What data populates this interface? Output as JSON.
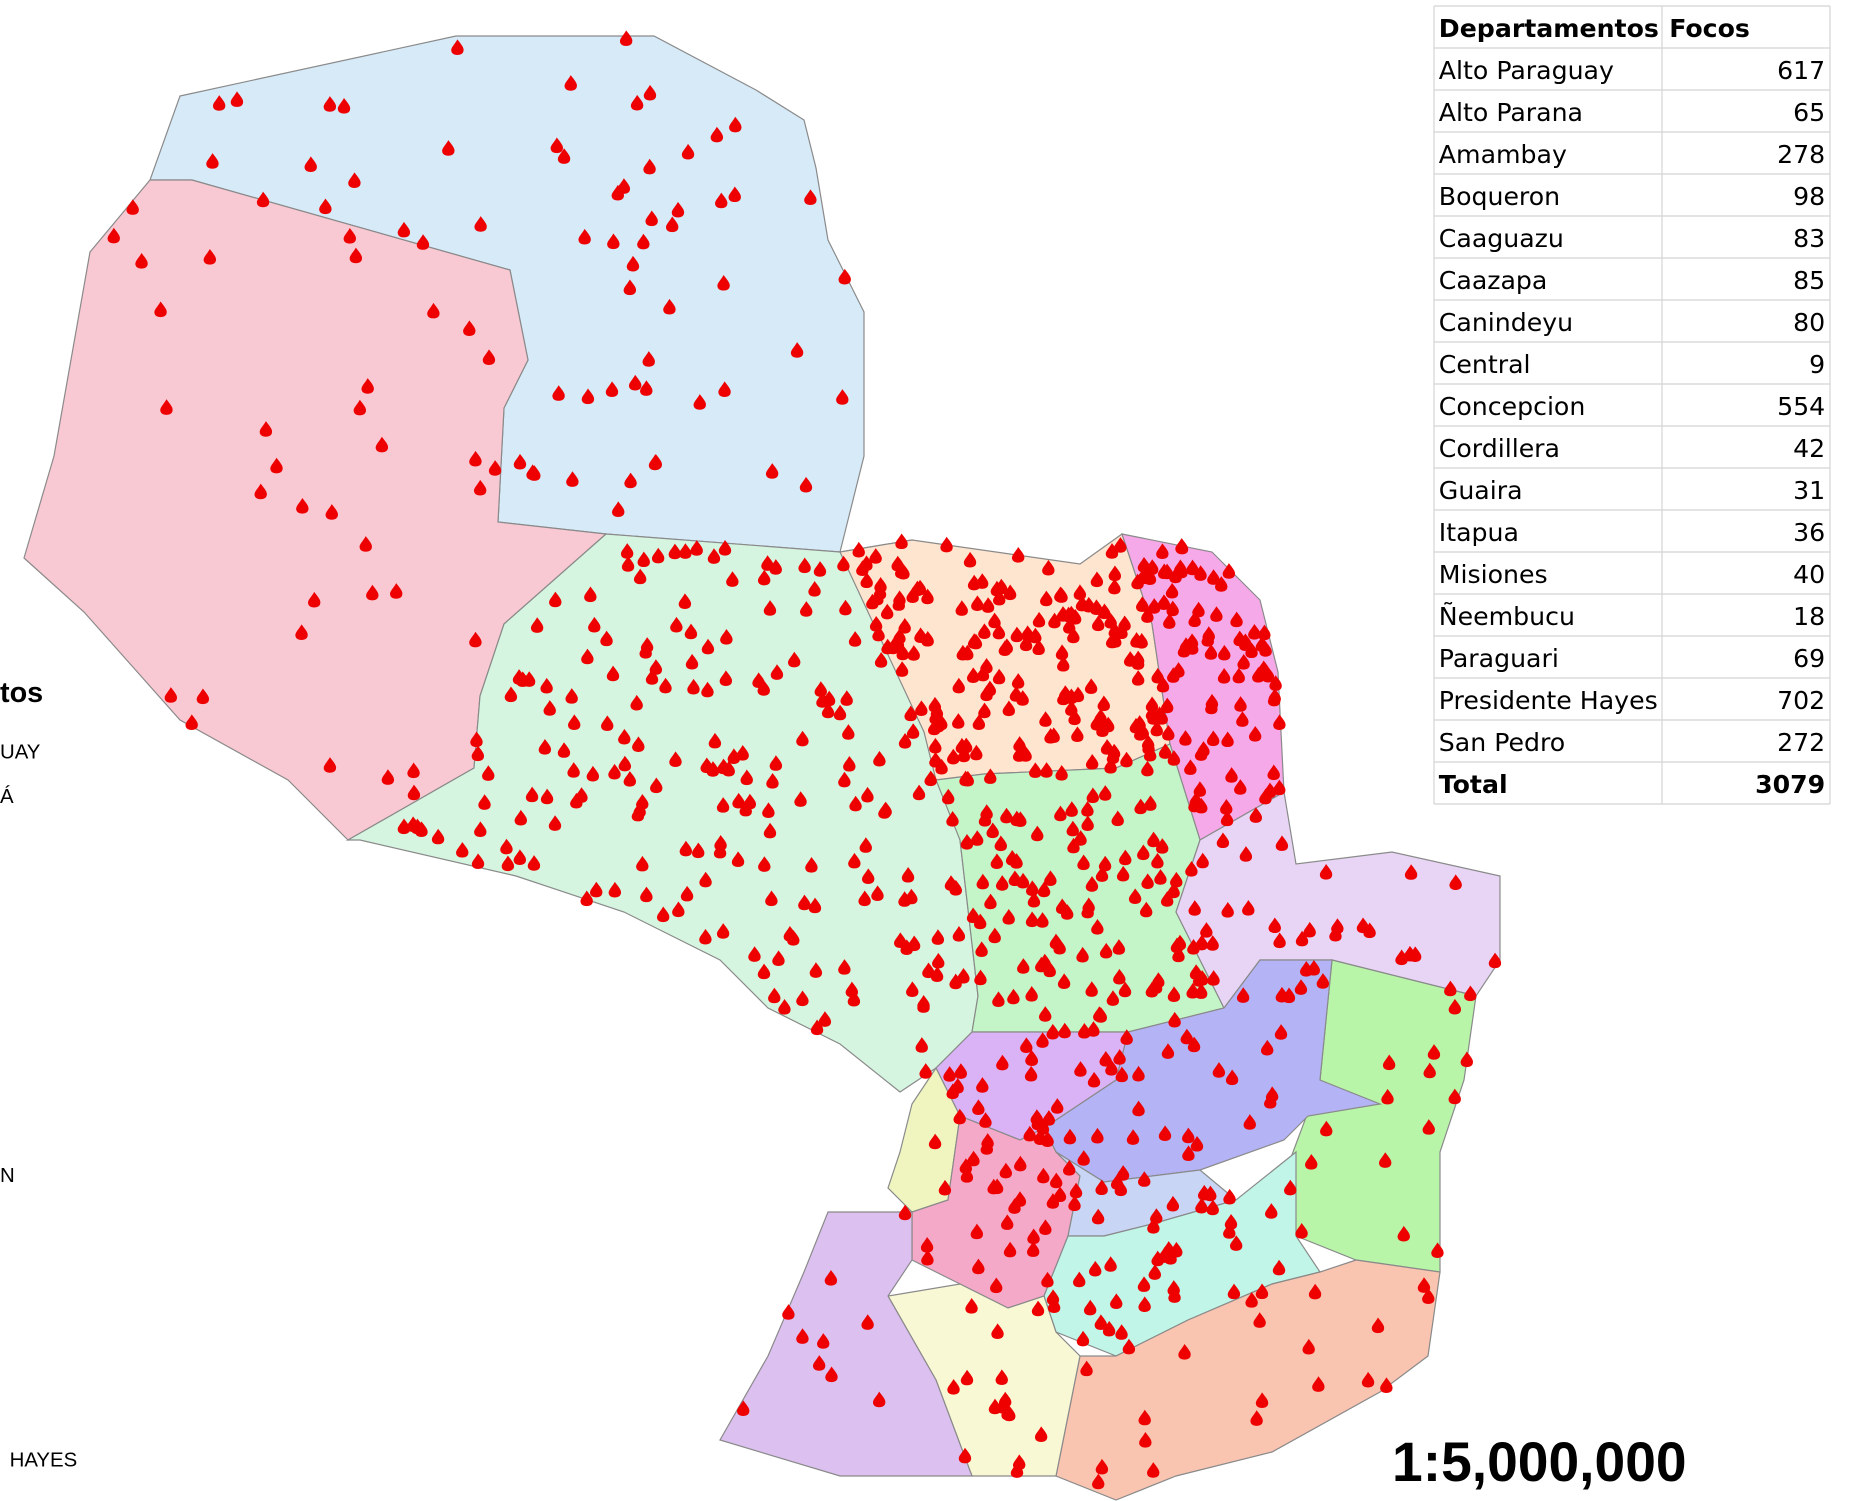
{
  "legend_fragments": [
    "tos",
    "UAY",
    "Á",
    "N",
    "HAYES"
  ],
  "table": {
    "header": [
      "Departamentos",
      "Focos"
    ],
    "rows": [
      [
        "Alto Paraguay",
        617
      ],
      [
        "Alto Parana",
        65
      ],
      [
        "Amambay",
        278
      ],
      [
        "Boqueron",
        98
      ],
      [
        "Caaguazu",
        83
      ],
      [
        "Caazapa",
        85
      ],
      [
        "Canindeyu",
        80
      ],
      [
        "Central",
        9
      ],
      [
        "Concepcion",
        554
      ],
      [
        "Cordillera",
        42
      ],
      [
        "Guaira",
        31
      ],
      [
        "Itapua",
        36
      ],
      [
        "Misiones",
        40
      ],
      [
        "Ñeembucu",
        18
      ],
      [
        "Paraguari",
        69
      ],
      [
        "Presidente Hayes",
        702
      ],
      [
        "San Pedro",
        272
      ]
    ],
    "total": [
      "Total",
      3079
    ]
  },
  "scale": "1:5,000,000"
}
